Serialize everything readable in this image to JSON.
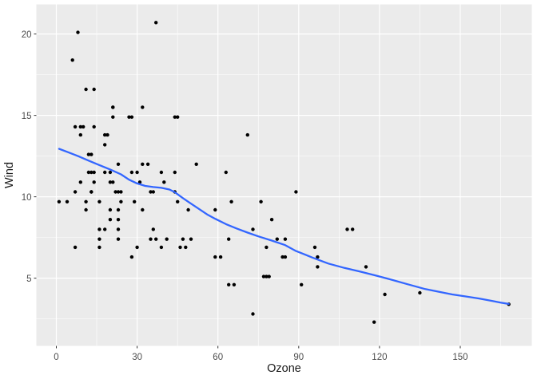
{
  "figure": {
    "background": "#FFFFFF",
    "panel_background": "#EBEBEB",
    "grid_major_color": "#FFFFFF",
    "grid_minor_color": "#FFFFFF",
    "point_color": "#000000",
    "smooth_line_color": "#3366FF",
    "axis_text_color": "#4D4D4D",
    "axis_title_color": "#1A1A1A",
    "tick_mark_color": "#333333"
  },
  "chart_data": {
    "type": "scatter",
    "title": "",
    "xlabel": "Ozone",
    "ylabel": "Wind",
    "x_ticks": [
      0,
      30,
      60,
      90,
      120,
      150
    ],
    "y_ticks": [
      5,
      10,
      15,
      20
    ],
    "x_minor_ticks": [
      15,
      45,
      75,
      105,
      135,
      165
    ],
    "y_minor_ticks": [
      2.5,
      7.5,
      12.5,
      17.5
    ],
    "xlim": [
      -7.42,
      176.56
    ],
    "ylim": [
      0.84,
      21.82
    ],
    "grid": true,
    "legend_position": "none",
    "points": [
      [
        41,
        7.4
      ],
      [
        36,
        8
      ],
      [
        12,
        12.6
      ],
      [
        18,
        11.5
      ],
      [
        28,
        14.9
      ],
      [
        23,
        8.6
      ],
      [
        19,
        13.8
      ],
      [
        8,
        20.1
      ],
      [
        7,
        6.9
      ],
      [
        16,
        9.7
      ],
      [
        11,
        9.2
      ],
      [
        14,
        10.9
      ],
      [
        18,
        13.2
      ],
      [
        14,
        11.5
      ],
      [
        34,
        12
      ],
      [
        6,
        18.4
      ],
      [
        30,
        11.5
      ],
      [
        11,
        9.7
      ],
      [
        1,
        9.7
      ],
      [
        11,
        16.6
      ],
      [
        4,
        9.7
      ],
      [
        32,
        12
      ],
      [
        23,
        12
      ],
      [
        45,
        14.9
      ],
      [
        115,
        5.7
      ],
      [
        37,
        7.4
      ],
      [
        29,
        9.7
      ],
      [
        71,
        13.8
      ],
      [
        39,
        11.5
      ],
      [
        23,
        8
      ],
      [
        21,
        14.9
      ],
      [
        37,
        20.7
      ],
      [
        20,
        9.2
      ],
      [
        12,
        11.5
      ],
      [
        13,
        10.3
      ],
      [
        135,
        4.1
      ],
      [
        49,
        9.2
      ],
      [
        32,
        9.2
      ],
      [
        64,
        4.6
      ],
      [
        40,
        10.9
      ],
      [
        77,
        5.1
      ],
      [
        97,
        6.3
      ],
      [
        97,
        5.7
      ],
      [
        85,
        7.4
      ],
      [
        10,
        14.3
      ],
      [
        27,
        14.9
      ],
      [
        7,
        14.3
      ],
      [
        48,
        6.9
      ],
      [
        35,
        10.3
      ],
      [
        61,
        6.3
      ],
      [
        79,
        5.1
      ],
      [
        63,
        11.5
      ],
      [
        16,
        6.9
      ],
      [
        80,
        8.6
      ],
      [
        108,
        8
      ],
      [
        20,
        8.6
      ],
      [
        52,
        12
      ],
      [
        82,
        7.4
      ],
      [
        50,
        7.4
      ],
      [
        64,
        7.4
      ],
      [
        59,
        9.2
      ],
      [
        39,
        6.9
      ],
      [
        9,
        13.8
      ],
      [
        16,
        7.4
      ],
      [
        78,
        6.9
      ],
      [
        35,
        7.4
      ],
      [
        66,
        4.6
      ],
      [
        122,
        4
      ],
      [
        89,
        10.3
      ],
      [
        110,
        8
      ],
      [
        44,
        11.5
      ],
      [
        28,
        11.5
      ],
      [
        65,
        9.7
      ],
      [
        22,
        10.3
      ],
      [
        59,
        6.3
      ],
      [
        23,
        7.4
      ],
      [
        31,
        10.9
      ],
      [
        44,
        10.3
      ],
      [
        21,
        15.5
      ],
      [
        9,
        14.3
      ],
      [
        45,
        9.7
      ],
      [
        168,
        3.4
      ],
      [
        73,
        8
      ],
      [
        76,
        9.7
      ],
      [
        118,
        2.3
      ],
      [
        84,
        6.3
      ],
      [
        85,
        6.3
      ],
      [
        96,
        6.9
      ],
      [
        78,
        5.1
      ],
      [
        73,
        2.8
      ],
      [
        91,
        4.6
      ],
      [
        47,
        7.4
      ],
      [
        32,
        15.5
      ],
      [
        20,
        10.9
      ],
      [
        23,
        10.3
      ],
      [
        21,
        10.9
      ],
      [
        24,
        9.7
      ],
      [
        44,
        14.9
      ],
      [
        21,
        15.5
      ],
      [
        28,
        6.3
      ],
      [
        9,
        10.9
      ],
      [
        13,
        11.5
      ],
      [
        46,
        6.9
      ],
      [
        18,
        13.8
      ],
      [
        13,
        10.3
      ],
      [
        24,
        10.3
      ],
      [
        16,
        8
      ],
      [
        13,
        12.6
      ],
      [
        23,
        9.2
      ],
      [
        36,
        10.3
      ],
      [
        7,
        10.3
      ],
      [
        14,
        16.6
      ],
      [
        30,
        6.9
      ],
      [
        14,
        14.3
      ],
      [
        18,
        8
      ],
      [
        20,
        11.5
      ]
    ],
    "series": [
      {
        "name": "loess-smooth",
        "type": "line",
        "values": [
          [
            1,
            12.95
          ],
          [
            4,
            12.76
          ],
          [
            8,
            12.5
          ],
          [
            12,
            12.22
          ],
          [
            16,
            11.95
          ],
          [
            20,
            11.68
          ],
          [
            24,
            11.38
          ],
          [
            27,
            11.05
          ],
          [
            30,
            10.82
          ],
          [
            33,
            10.67
          ],
          [
            36,
            10.6
          ],
          [
            39,
            10.55
          ],
          [
            42,
            10.45
          ],
          [
            44,
            10.28
          ],
          [
            47,
            9.92
          ],
          [
            50,
            9.58
          ],
          [
            53,
            9.25
          ],
          [
            56,
            8.92
          ],
          [
            59,
            8.65
          ],
          [
            63,
            8.32
          ],
          [
            67,
            8.05
          ],
          [
            71,
            7.8
          ],
          [
            75,
            7.57
          ],
          [
            80,
            7.31
          ],
          [
            85,
            7.03
          ],
          [
            89,
            6.67
          ],
          [
            92,
            6.47
          ],
          [
            95,
            6.27
          ],
          [
            101,
            5.9
          ],
          [
            107,
            5.63
          ],
          [
            113,
            5.4
          ],
          [
            119,
            5.15
          ],
          [
            124,
            4.93
          ],
          [
            130,
            4.65
          ],
          [
            137,
            4.33
          ],
          [
            142,
            4.17
          ],
          [
            147,
            4.0
          ],
          [
            152,
            3.88
          ],
          [
            157,
            3.75
          ],
          [
            162,
            3.6
          ],
          [
            165,
            3.5
          ],
          [
            168,
            3.42
          ]
        ]
      }
    ]
  }
}
